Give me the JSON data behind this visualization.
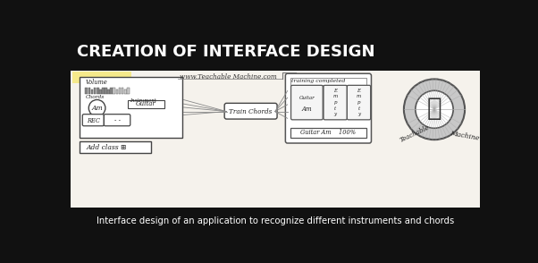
{
  "title": "CREATION OF INTERFACE DESIGN",
  "title_color": "#ffffff",
  "title_bg_color": "#111111",
  "caption": "Interface design of an application to recognize different instruments and chords",
  "caption_color": "#ffffff",
  "caption_bg_color": "#111111",
  "sketch_bg_color": "#f5f2ec",
  "url_text": "www.Teachable Machine.com",
  "add_class_text": "Add class ⊞",
  "train_button_text": "Train Chords",
  "training_title": "training completed",
  "result_text": "Guitar Am    100%",
  "teachable_text1": "Teachable",
  "teachable_text2": "Machine"
}
